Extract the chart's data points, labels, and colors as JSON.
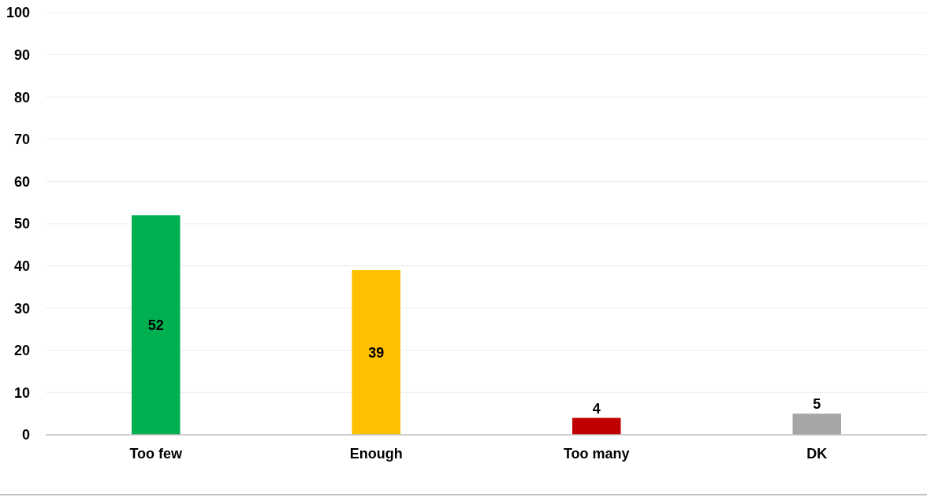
{
  "chart_data": {
    "type": "bar",
    "categories": [
      "Too few",
      "Enough",
      "Too many",
      "DK"
    ],
    "values": [
      52,
      39,
      4,
      5
    ],
    "colors": [
      "#00b050",
      "#ffc000",
      "#c00000",
      "#a6a6a6"
    ],
    "ylim": [
      0,
      100
    ],
    "yticks": [
      0,
      10,
      20,
      30,
      40,
      50,
      60,
      70,
      80,
      90,
      100
    ],
    "grid": "y",
    "data_labels": true
  }
}
